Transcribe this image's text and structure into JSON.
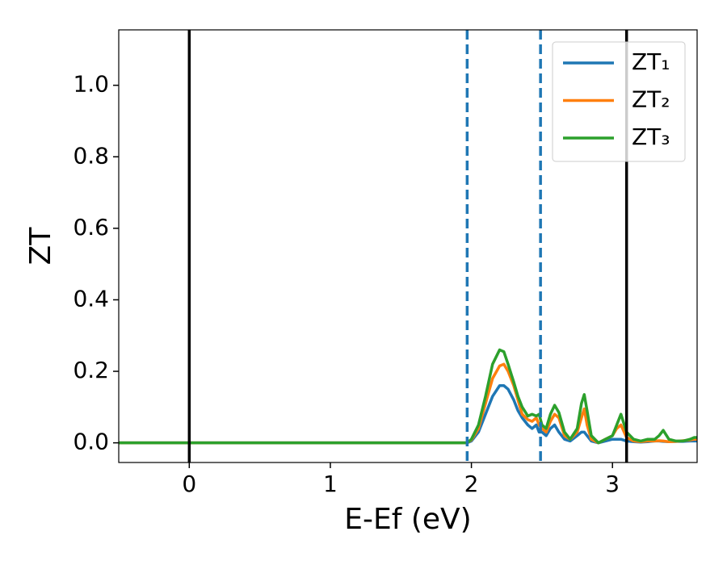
{
  "chart_data": {
    "type": "line",
    "xlabel": "E-Ef (eV)",
    "ylabel": "ZT",
    "x": [
      -0.5,
      0,
      0.5,
      1.0,
      1.5,
      1.9,
      1.97,
      2.0,
      2.05,
      2.1,
      2.15,
      2.2,
      2.23,
      2.26,
      2.3,
      2.33,
      2.36,
      2.4,
      2.43,
      2.46,
      2.48,
      2.5,
      2.53,
      2.56,
      2.59,
      2.62,
      2.66,
      2.7,
      2.75,
      2.78,
      2.8,
      2.82,
      2.85,
      2.9,
      2.95,
      3.0,
      3.03,
      3.06,
      3.1,
      3.15,
      3.2,
      3.25,
      3.3,
      3.33,
      3.36,
      3.4,
      3.45,
      3.5,
      3.55,
      3.58,
      3.6
    ],
    "series": [
      {
        "name": "ZT₁",
        "color": "#1f77b4",
        "values": [
          0,
          0,
          0,
          0,
          0,
          0,
          0,
          0.005,
          0.03,
          0.08,
          0.13,
          0.16,
          0.16,
          0.15,
          0.12,
          0.09,
          0.07,
          0.05,
          0.04,
          0.05,
          0.03,
          0.03,
          0.02,
          0.04,
          0.05,
          0.03,
          0.01,
          0.005,
          0.02,
          0.03,
          0.03,
          0.02,
          0.005,
          0,
          0.005,
          0.01,
          0.01,
          0.01,
          0.005,
          0.003,
          0.002,
          0.003,
          0.005,
          0.005,
          0.004,
          0.003,
          0.004,
          0.004,
          0.005,
          0.005,
          0.005
        ]
      },
      {
        "name": "ZT₂",
        "color": "#ff7f0e",
        "values": [
          0,
          0,
          0,
          0,
          0,
          0,
          0,
          0.008,
          0.04,
          0.11,
          0.18,
          0.215,
          0.22,
          0.2,
          0.16,
          0.12,
          0.08,
          0.065,
          0.06,
          0.07,
          0.05,
          0.04,
          0.03,
          0.06,
          0.08,
          0.07,
          0.02,
          0.01,
          0.03,
          0.07,
          0.095,
          0.05,
          0.01,
          0,
          0.01,
          0.02,
          0.04,
          0.05,
          0.015,
          0.005,
          0.003,
          0.005,
          0.005,
          0.006,
          0.005,
          0.003,
          0.004,
          0.006,
          0.008,
          0.01,
          0.01
        ]
      },
      {
        "name": "ZT₃",
        "color": "#2ca02c",
        "values": [
          0,
          0,
          0,
          0,
          0,
          0,
          0,
          0.01,
          0.05,
          0.13,
          0.22,
          0.26,
          0.255,
          0.22,
          0.17,
          0.13,
          0.1,
          0.075,
          0.08,
          0.075,
          0.08,
          0.05,
          0.04,
          0.08,
          0.105,
          0.085,
          0.03,
          0.01,
          0.04,
          0.11,
          0.135,
          0.09,
          0.02,
          0,
          0.01,
          0.02,
          0.05,
          0.08,
          0.03,
          0.01,
          0.005,
          0.01,
          0.01,
          0.02,
          0.035,
          0.01,
          0.005,
          0.005,
          0.01,
          0.015,
          0.015
        ]
      }
    ],
    "vlines": [
      {
        "x": 0,
        "color": "#000000",
        "dashed": false
      },
      {
        "x": 1.97,
        "color": "#1f77b4",
        "dashed": true
      },
      {
        "x": 2.49,
        "color": "#1f77b4",
        "dashed": true
      },
      {
        "x": 3.1,
        "color": "#000000",
        "dashed": false
      }
    ],
    "xlim": [
      -0.5,
      3.6
    ],
    "xticks": [
      0,
      1,
      2,
      3
    ],
    "ylim": [
      -0.055,
      1.155
    ],
    "yticks": [
      {
        "value": 0,
        "label": "0.0"
      },
      0.2,
      0.4,
      0.6,
      0.8,
      {
        "value": 1,
        "label": "1.0"
      }
    ],
    "grid": false,
    "legend": "upper right"
  }
}
